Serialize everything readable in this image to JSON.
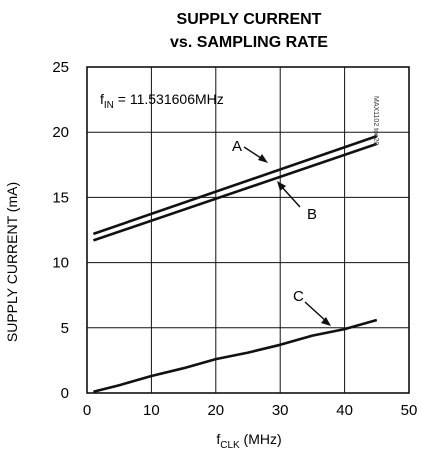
{
  "chart_data": {
    "type": "line",
    "title_line1": "SUPPLY CURRENT",
    "title_line2": "vs. SAMPLING RATE",
    "xlabel_main": "f",
    "xlabel_sub": "CLK",
    "xlabel_unit": " (MHz)",
    "ylabel": "SUPPLY CURRENT (mA)",
    "xlim": [
      0,
      50
    ],
    "ylim": [
      0,
      25
    ],
    "x_ticks": [
      0,
      10,
      20,
      30,
      40,
      50
    ],
    "y_ticks": [
      0,
      5,
      10,
      15,
      20,
      25
    ],
    "grid": true,
    "condition_main": "f",
    "condition_sub": "IN",
    "condition_value": " = 11.531606MHz",
    "watermark": "MAX1102 toc20",
    "series": [
      {
        "name": "A",
        "x": [
          1,
          45
        ],
        "y": [
          12.2,
          19.7
        ]
      },
      {
        "name": "B",
        "x": [
          1,
          45
        ],
        "y": [
          11.7,
          19.1
        ]
      },
      {
        "name": "C",
        "x": [
          1,
          5,
          10,
          15,
          20,
          25,
          30,
          35,
          40,
          45
        ],
        "y": [
          0.1,
          0.6,
          1.3,
          1.9,
          2.6,
          3.1,
          3.7,
          4.4,
          4.9,
          5.6
        ]
      }
    ]
  }
}
